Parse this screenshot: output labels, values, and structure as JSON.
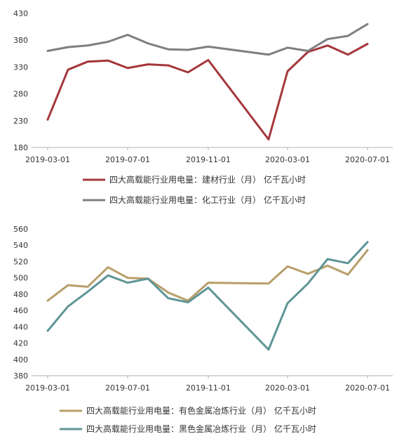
{
  "chart_data": [
    {
      "type": "line",
      "x": [
        "2019-03-01",
        "2019-04-01",
        "2019-05-01",
        "2019-06-01",
        "2019-07-01",
        "2019-08-01",
        "2019-09-01",
        "2019-10-01",
        "2019-11-01",
        "2020-02-01",
        "2020-03-01",
        "2020-04-01",
        "2020-05-01",
        "2020-06-01",
        "2020-07-01",
        "2020-08-01"
      ],
      "x_tick_labels": [
        "2019-03-01",
        "2019-07-01",
        "2019-11-01",
        "2020-03-01",
        "2020-07-01"
      ],
      "ylim": [
        180,
        430
      ],
      "y_ticks": [
        180,
        230,
        280,
        330,
        380,
        430
      ],
      "grid": false,
      "legend_position": "bottom",
      "series": [
        {
          "name": "四大高载能行业用电量：建材行业（月） 亿千瓦小时",
          "color": "#a5373b",
          "values": [
            232,
            325,
            340,
            342,
            328,
            335,
            333,
            320,
            343,
            195,
            322,
            358,
            370,
            353,
            373,
            null
          ]
        },
        {
          "name": "四大高载能行业用电量：化工行业（月） 亿千瓦小时",
          "color": "#7f7f7f",
          "values": [
            360,
            367,
            370,
            377,
            390,
            374,
            363,
            362,
            368,
            353,
            366,
            360,
            382,
            388,
            410,
            null
          ]
        }
      ]
    },
    {
      "type": "line",
      "x": [
        "2019-03-01",
        "2019-04-01",
        "2019-05-01",
        "2019-06-01",
        "2019-07-01",
        "2019-08-01",
        "2019-09-01",
        "2019-10-01",
        "2019-11-01",
        "2020-02-01",
        "2020-03-01",
        "2020-04-01",
        "2020-05-01",
        "2020-06-01",
        "2020-07-01",
        "2020-08-01"
      ],
      "x_tick_labels": [
        "2019-03-01",
        "2019-07-01",
        "2019-11-01",
        "2020-03-01",
        "2020-07-01"
      ],
      "ylim": [
        380,
        560
      ],
      "y_ticks": [
        380,
        400,
        420,
        440,
        460,
        480,
        500,
        520,
        540,
        560
      ],
      "grid": false,
      "legend_position": "bottom",
      "series": [
        {
          "name": "四大高载能行业用电量：有色金属冶炼行业（月） 亿千瓦小时",
          "color": "#b89e6a",
          "values": [
            472,
            491,
            489,
            513,
            500,
            499,
            482,
            472,
            494,
            493,
            514,
            505,
            515,
            504,
            534,
            null
          ]
        },
        {
          "name": "四大高载能行业用电量：黑色金属冶炼行业（月） 亿千瓦小时",
          "color": "#5e9596",
          "values": [
            435,
            465,
            483,
            503,
            494,
            499,
            475,
            470,
            488,
            412,
            469,
            493,
            523,
            518,
            544,
            null
          ]
        }
      ]
    }
  ]
}
